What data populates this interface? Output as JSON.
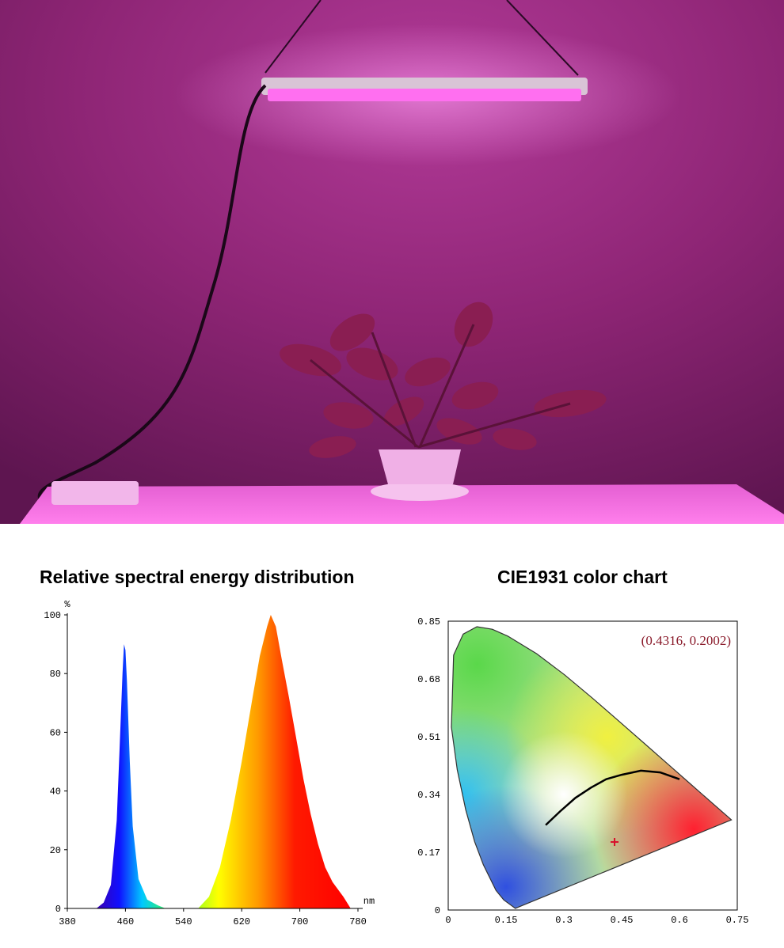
{
  "colors": {
    "room_magenta": "#9c2a82",
    "light_glow": "#ff7cf0",
    "coordinate_text": "#8a1a2a",
    "marker": "#d8102a"
  },
  "spectrum": {
    "title": "Relative spectral energy distribution"
  },
  "cie": {
    "title": "CIE1931 color chart"
  },
  "chart_data": [
    {
      "type": "area",
      "title": "Relative spectral energy distribution",
      "ylabel": "%",
      "xlabel": "nm",
      "xlim": [
        380,
        780
      ],
      "ylim": [
        0,
        100
      ],
      "x_ticks": [
        "380",
        "460",
        "540",
        "620",
        "700",
        "780"
      ],
      "y_ticks": [
        "0",
        "20",
        "40",
        "60",
        "80",
        "100"
      ],
      "grid": false,
      "series": [
        {
          "values": [
            [
              420,
              0
            ],
            [
              430,
              2
            ],
            [
              440,
              8
            ],
            [
              448,
              30
            ],
            [
              452,
              55
            ],
            [
              456,
              80
            ],
            [
              458,
              90
            ],
            [
              460,
              88
            ],
            [
              462,
              78
            ],
            [
              466,
              50
            ],
            [
              470,
              28
            ],
            [
              478,
              10
            ],
            [
              490,
              3
            ],
            [
              505,
              1
            ],
            [
              515,
              0
            ],
            [
              560,
              0
            ],
            [
              575,
              4
            ],
            [
              590,
              14
            ],
            [
              605,
              30
            ],
            [
              620,
              50
            ],
            [
              635,
              72
            ],
            [
              645,
              86
            ],
            [
              655,
              96
            ],
            [
              660,
              100
            ],
            [
              667,
              96
            ],
            [
              675,
              85
            ],
            [
              685,
              72
            ],
            [
              695,
              58
            ],
            [
              705,
              44
            ],
            [
              715,
              32
            ],
            [
              725,
              22
            ],
            [
              735,
              14
            ],
            [
              745,
              9
            ],
            [
              760,
              4
            ],
            [
              770,
              0
            ]
          ]
        }
      ]
    },
    {
      "type": "scatter",
      "title": "CIE1931 color chart",
      "xlim": [
        0,
        0.75
      ],
      "ylim": [
        0,
        0.85
      ],
      "x_ticks": [
        "0",
        "0.15",
        "0.3",
        "0.45",
        "0.6",
        "0.75"
      ],
      "y_ticks": [
        "0",
        "0.17",
        "0.34",
        "0.51",
        "0.68",
        "0.85"
      ],
      "grid": false,
      "point_label": "(0.4316,  0.2002)",
      "series": [
        {
          "values": [
            [
              0.4316,
              0.2002
            ]
          ]
        }
      ],
      "gamut_boundary": [
        [
          0.1741,
          0.005
        ],
        [
          0.144,
          0.0297
        ],
        [
          0.124,
          0.0578
        ],
        [
          0.0913,
          0.133
        ],
        [
          0.0687,
          0.2007
        ],
        [
          0.0454,
          0.295
        ],
        [
          0.0235,
          0.4127
        ],
        [
          0.0082,
          0.5384
        ],
        [
          0.0139,
          0.7502
        ],
        [
          0.0389,
          0.812
        ],
        [
          0.0743,
          0.8338
        ],
        [
          0.1142,
          0.8262
        ],
        [
          0.1547,
          0.8059
        ],
        [
          0.2296,
          0.7543
        ],
        [
          0.3016,
          0.6923
        ],
        [
          0.3731,
          0.6245
        ],
        [
          0.4441,
          0.5547
        ],
        [
          0.5125,
          0.4866
        ],
        [
          0.5752,
          0.4242
        ],
        [
          0.627,
          0.3725
        ],
        [
          0.6915,
          0.3083
        ],
        [
          0.7347,
          0.2653
        ]
      ],
      "planckian_locus": [
        [
          0.253,
          0.25
        ],
        [
          0.29,
          0.29
        ],
        [
          0.33,
          0.33
        ],
        [
          0.37,
          0.36
        ],
        [
          0.41,
          0.385
        ],
        [
          0.45,
          0.398
        ],
        [
          0.5,
          0.41
        ],
        [
          0.55,
          0.405
        ],
        [
          0.6,
          0.385
        ]
      ]
    }
  ]
}
